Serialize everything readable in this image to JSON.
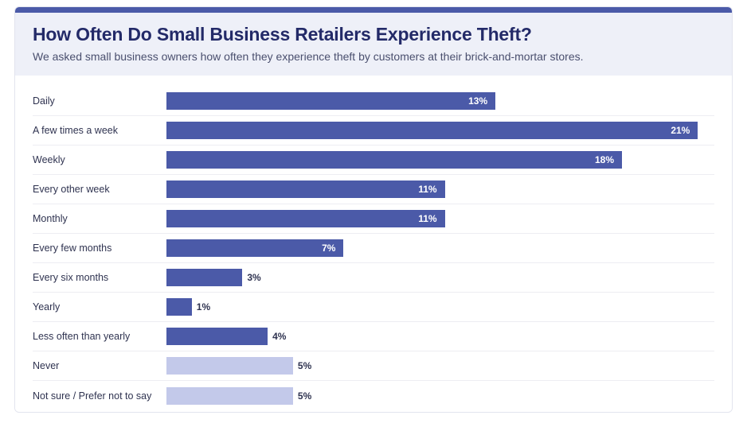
{
  "chart": {
    "type": "bar",
    "title": "How Often Do Small Business Retailers Experience Theft?",
    "subtitle": "We asked small business owners how often they experience theft by customers at their brick-and-mortar stores.",
    "title_fontsize": 23,
    "subtitle_fontsize": 14,
    "label_fontsize": 12.5,
    "value_fontsize": 12,
    "stripe_color": "#4b5aa8",
    "header_bg": "#eef0f8",
    "title_color": "#232a68",
    "subtitle_color": "#4a4f6e",
    "label_color": "#2f3350",
    "row_divider": "#ededf2",
    "bar_primary": "#4b5aa8",
    "bar_secondary": "#c3c9ea",
    "max_value": 21,
    "bar_full_width_pct": 97,
    "rows": [
      {
        "label": "Daily",
        "value": 13,
        "display": "13%",
        "color": "primary",
        "outside": false
      },
      {
        "label": "A few times a week",
        "value": 21,
        "display": "21%",
        "color": "primary",
        "outside": false
      },
      {
        "label": "Weekly",
        "value": 18,
        "display": "18%",
        "color": "primary",
        "outside": false
      },
      {
        "label": "Every other week",
        "value": 11,
        "display": "11%",
        "color": "primary",
        "outside": false
      },
      {
        "label": "Monthly",
        "value": 11,
        "display": "11%",
        "color": "primary",
        "outside": false
      },
      {
        "label": "Every few months",
        "value": 7,
        "display": "7%",
        "color": "primary",
        "outside": false
      },
      {
        "label": "Every six months",
        "value": 3,
        "display": "3%",
        "color": "primary",
        "outside": true
      },
      {
        "label": "Yearly",
        "value": 1,
        "display": "1%",
        "color": "primary",
        "outside": true
      },
      {
        "label": "Less often than yearly",
        "value": 4,
        "display": "4%",
        "color": "primary",
        "outside": true
      },
      {
        "label": "Never",
        "value": 5,
        "display": "5%",
        "color": "secondary",
        "outside": true
      },
      {
        "label": "Not sure / Prefer not to say",
        "value": 5,
        "display": "5%",
        "color": "secondary",
        "outside": true
      }
    ]
  }
}
